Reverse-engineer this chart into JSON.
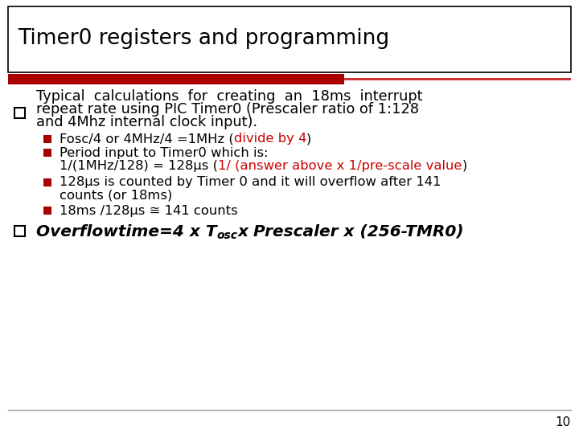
{
  "title": "Timer0 registers and programming",
  "bg_color": "#ffffff",
  "title_border_color": "#000000",
  "red_bar_dark": "#aa0000",
  "red_bar_light": "#cc3333",
  "bullet_color": "#aa0000",
  "text_color": "#000000",
  "red_text_color": "#cc0000",
  "page_number": "10",
  "main_line1": "Typical  calculations  for  creating  an  18ms  interrupt",
  "main_line2": "repeat rate using PIC Timer0 (Prescaler ratio of 1:128",
  "main_line3": "and 4Mhz internal clock input).",
  "sub1_black1": "Fosc/4 or 4MHz/4 =1MHz (",
  "sub1_red": "divide by 4",
  "sub1_black2": ")",
  "sub2_line1": "Period input to Timer0 which is:",
  "sub2_black1": "1/(1MHz/128) = 128μs (",
  "sub2_red": "1/ (answer above x 1/pre-scale value",
  "sub2_black2": ")",
  "sub3_line1": "128μs is counted by Timer 0 and it will overflow after 141",
  "sub3_line2": "counts (or 18ms)",
  "sub4": "18ms /128μs ≅ 141 counts",
  "formula1": "Overflowtime=4 x T",
  "formula_sub": "osc",
  "formula2": "x Prescaler x (256-TMR0)"
}
